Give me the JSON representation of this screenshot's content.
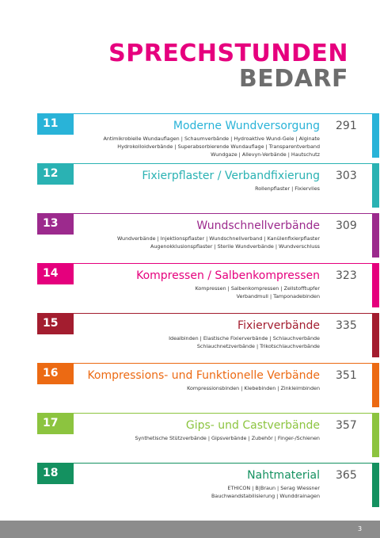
{
  "header": {
    "title": "SPRECHSTUNDEN",
    "subtitle": "BEDARF"
  },
  "sections": [
    {
      "number": "11",
      "title": "Moderne Wundversorgung",
      "page": "291",
      "lines": [
        "Antimikrobielle Wundauflagen | Schaumverbände | Hydroaktive Wund-Gele | Alginate",
        "Hydrokolloidverbände | Superabsorbierende Wundauflage | Transparentverband",
        "Wundgaze | Allevyn-Verbände | Hautschutz"
      ]
    },
    {
      "number": "12",
      "title": "Fixierpflaster / Verbandfixierung",
      "page": "303",
      "lines": [
        "Rollenpflaster | Fixiervlies"
      ]
    },
    {
      "number": "13",
      "title": "Wundschnellverbände",
      "page": "309",
      "lines": [
        "Wundverbände | Injektionspflaster | Wundschnellverband | Kanülenfixierpflaster",
        "Augenokklusionspflaster | Sterile Wundverbände | Wundverschluss"
      ]
    },
    {
      "number": "14",
      "title": "Kompressen / Salbenkompressen",
      "page": "323",
      "lines": [
        "Kompressen | Salbenkompressen | Zellstofftupfer",
        "Verbandmull | Tamponadebinden"
      ]
    },
    {
      "number": "15",
      "title": "Fixierverbände",
      "page": "335",
      "lines": [
        "Idealbinden | Elastische Fixierverbände | Schlauchverbände",
        "Schlauchnetzverbände | Trikotschlauchverbände"
      ]
    },
    {
      "number": "16",
      "title": "Kompressions- und Funktionelle Verbände",
      "page": "351",
      "lines": [
        "Kompressionsbinden | Klebebinden | Zinkleimbinden"
      ]
    },
    {
      "number": "17",
      "title": "Gips- und Castverbände",
      "page": "357",
      "lines": [
        "Synthetische Stützverbände | Gipsverbände | Zubehör | Finger-/Schienen"
      ]
    },
    {
      "number": "18",
      "title": "Nahtmaterial",
      "page": "365",
      "lines": [
        "ETHICON | B|Braun | Serag Wiessner",
        "Bauchwandstabilisierung | Wunddrainagen"
      ]
    }
  ],
  "footer": {
    "page": "3"
  }
}
